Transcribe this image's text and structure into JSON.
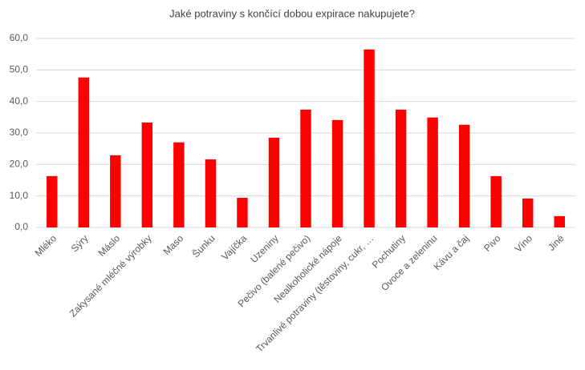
{
  "chart_data": {
    "type": "bar",
    "title": "Jaké potraviny s končící dobou expirace nakupujete?",
    "categories": [
      "Mléko",
      "Sýry",
      "Máslo",
      "Zakysané mléčné výrobky",
      "Maso",
      "Šunku",
      "Vajíčka",
      "Uzeniny",
      "Pečivo (balené pečivo)",
      "Nealkoholické nápoje",
      "Trvanlivé potraviny (těstoviny, cukr, …",
      "Pochutiny",
      "Ovoce a zeleninu",
      "Kávu a čaj",
      "Pivo",
      "Víno",
      "Jiné"
    ],
    "values": [
      16.3,
      47.6,
      22.9,
      33.3,
      27.0,
      21.6,
      9.4,
      28.5,
      37.4,
      34.1,
      56.5,
      37.4,
      34.9,
      32.6,
      16.3,
      9.2,
      3.6
    ],
    "color": "#ff0000",
    "ylim": [
      0,
      60
    ],
    "yticks": [
      {
        "value": 0,
        "label": "0,0"
      },
      {
        "value": 10,
        "label": "10,0"
      },
      {
        "value": 20,
        "label": "20,0"
      },
      {
        "value": 30,
        "label": "30,0"
      },
      {
        "value": 40,
        "label": "40,0"
      },
      {
        "value": 50,
        "label": "50,0"
      },
      {
        "value": 60,
        "label": "60,0"
      }
    ],
    "grid": true
  }
}
